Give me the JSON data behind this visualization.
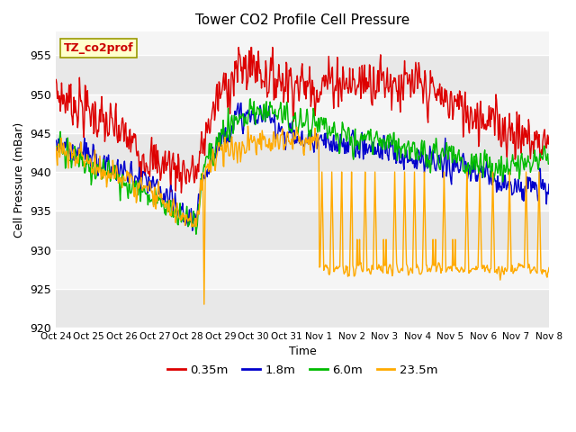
{
  "title": "Tower CO2 Profile Cell Pressure",
  "xlabel": "Time",
  "ylabel": "Cell Pressure (mBar)",
  "ylim": [
    920,
    958
  ],
  "yticks": [
    920,
    925,
    930,
    935,
    940,
    945,
    950,
    955
  ],
  "annotation_text": "TZ_co2prof",
  "annotation_color": "#cc0000",
  "annotation_bg": "#ffffcc",
  "annotation_border": "#999900",
  "line_colors": [
    "#dd0000",
    "#0000cc",
    "#00bb00",
    "#ffaa00"
  ],
  "line_labels": [
    "0.35m",
    "1.8m",
    "6.0m",
    "23.5m"
  ],
  "line_width": 1.0,
  "bg_color": "#ffffff",
  "plot_bg_light": "#f5f5f5",
  "plot_bg_dark": "#e8e8e8",
  "grid_color": "#cccccc",
  "xtick_labels": [
    "Oct 24",
    "Oct 25",
    "Oct 26",
    "Oct 27",
    "Oct 28",
    "Oct 29",
    "Oct 30",
    "Oct 31",
    "Nov 1",
    "Nov 2",
    "Nov 3",
    "Nov 4",
    "Nov 5",
    "Nov 6",
    "Nov 7",
    "Nov 8"
  ],
  "n_points": 800,
  "band_ranges": [
    [
      920,
      925
    ],
    [
      925,
      930
    ],
    [
      930,
      935
    ],
    [
      935,
      940
    ],
    [
      940,
      945
    ],
    [
      945,
      950
    ],
    [
      950,
      955
    ],
    [
      955,
      960
    ]
  ],
  "band_colors": [
    "#e8e8e8",
    "#f5f5f5",
    "#e8e8e8",
    "#f5f5f5",
    "#e8e8e8",
    "#f5f5f5",
    "#e8e8e8",
    "#f5f5f5"
  ]
}
